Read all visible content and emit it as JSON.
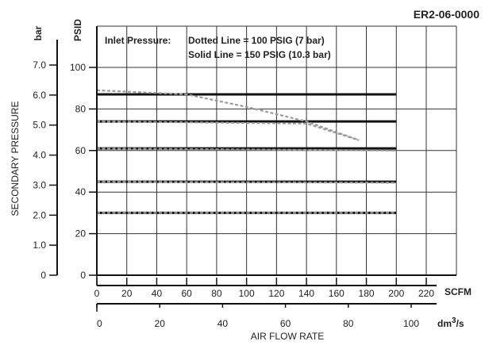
{
  "chart_data": {
    "type": "line",
    "code": "ER2-06-0000",
    "legend": {
      "title": "Inlet Pressure:",
      "dotted": "Dotted Line = 100 PSIG (7 bar)",
      "solid": "Solid Line = 150 PSIG (10.3 bar)"
    },
    "x_axis": {
      "label": "AIR FLOW RATE",
      "unit": "SCFM",
      "range": [
        0,
        220
      ],
      "ticks": [
        "0",
        "20",
        "40",
        "60",
        "80",
        "100",
        "120",
        "140",
        "160",
        "180",
        "200",
        "220"
      ]
    },
    "x2_axis": {
      "unit": "dm³/s",
      "unit_base": "dm",
      "unit_exp": "3",
      "unit_suffix": "/s",
      "ticks": [
        {
          "label": "0",
          "value": 0
        },
        {
          "label": "20",
          "value": 20
        },
        {
          "label": "40",
          "value": 40
        },
        {
          "label": "60",
          "value": 60
        },
        {
          "label": "80",
          "value": 80
        },
        {
          "label": "100",
          "value": 100
        }
      ]
    },
    "y_axis": {
      "label": "SECONDARY PRESSURE",
      "unit": "PSID",
      "range": [
        0,
        100
      ],
      "ticks": [
        "0",
        "20",
        "40",
        "60",
        "80",
        "100"
      ]
    },
    "y2_axis": {
      "unit": "bar",
      "ticks": [
        {
          "label": "0",
          "value": 0
        },
        {
          "label": "1.0",
          "value": 1
        },
        {
          "label": "2.0",
          "value": 2
        },
        {
          "label": "3.0",
          "value": 3
        },
        {
          "label": "4.0",
          "value": 4
        },
        {
          "label": "5.0",
          "value": 5
        },
        {
          "label": "6.0",
          "value": 6
        },
        {
          "label": "7.0",
          "value": 7
        }
      ]
    },
    "grid": true,
    "series": [
      {
        "style": "solid",
        "x": [
          0,
          200
        ],
        "y": [
          30,
          30
        ]
      },
      {
        "style": "solid",
        "x": [
          0,
          200
        ],
        "y": [
          45,
          45
        ]
      },
      {
        "style": "solid",
        "x": [
          0,
          200
        ],
        "y": [
          61,
          61
        ]
      },
      {
        "style": "solid",
        "x": [
          0,
          200
        ],
        "y": [
          74,
          74
        ]
      },
      {
        "style": "solid",
        "x": [
          0,
          200
        ],
        "y": [
          87,
          87
        ]
      },
      {
        "style": "dotted",
        "x": [
          0,
          200
        ],
        "y": [
          30,
          30
        ]
      },
      {
        "style": "dotted",
        "x": [
          0,
          200
        ],
        "y": [
          45,
          44.5
        ]
      },
      {
        "style": "dotted",
        "x": [
          0,
          200
        ],
        "y": [
          61,
          60
        ]
      },
      {
        "style": "dotted",
        "x": [
          0,
          140,
          175
        ],
        "y": [
          74,
          73,
          65
        ]
      },
      {
        "style": "dotted",
        "x": [
          0,
          60,
          100,
          140,
          175
        ],
        "y": [
          89,
          87,
          81,
          74,
          65
        ]
      }
    ]
  }
}
